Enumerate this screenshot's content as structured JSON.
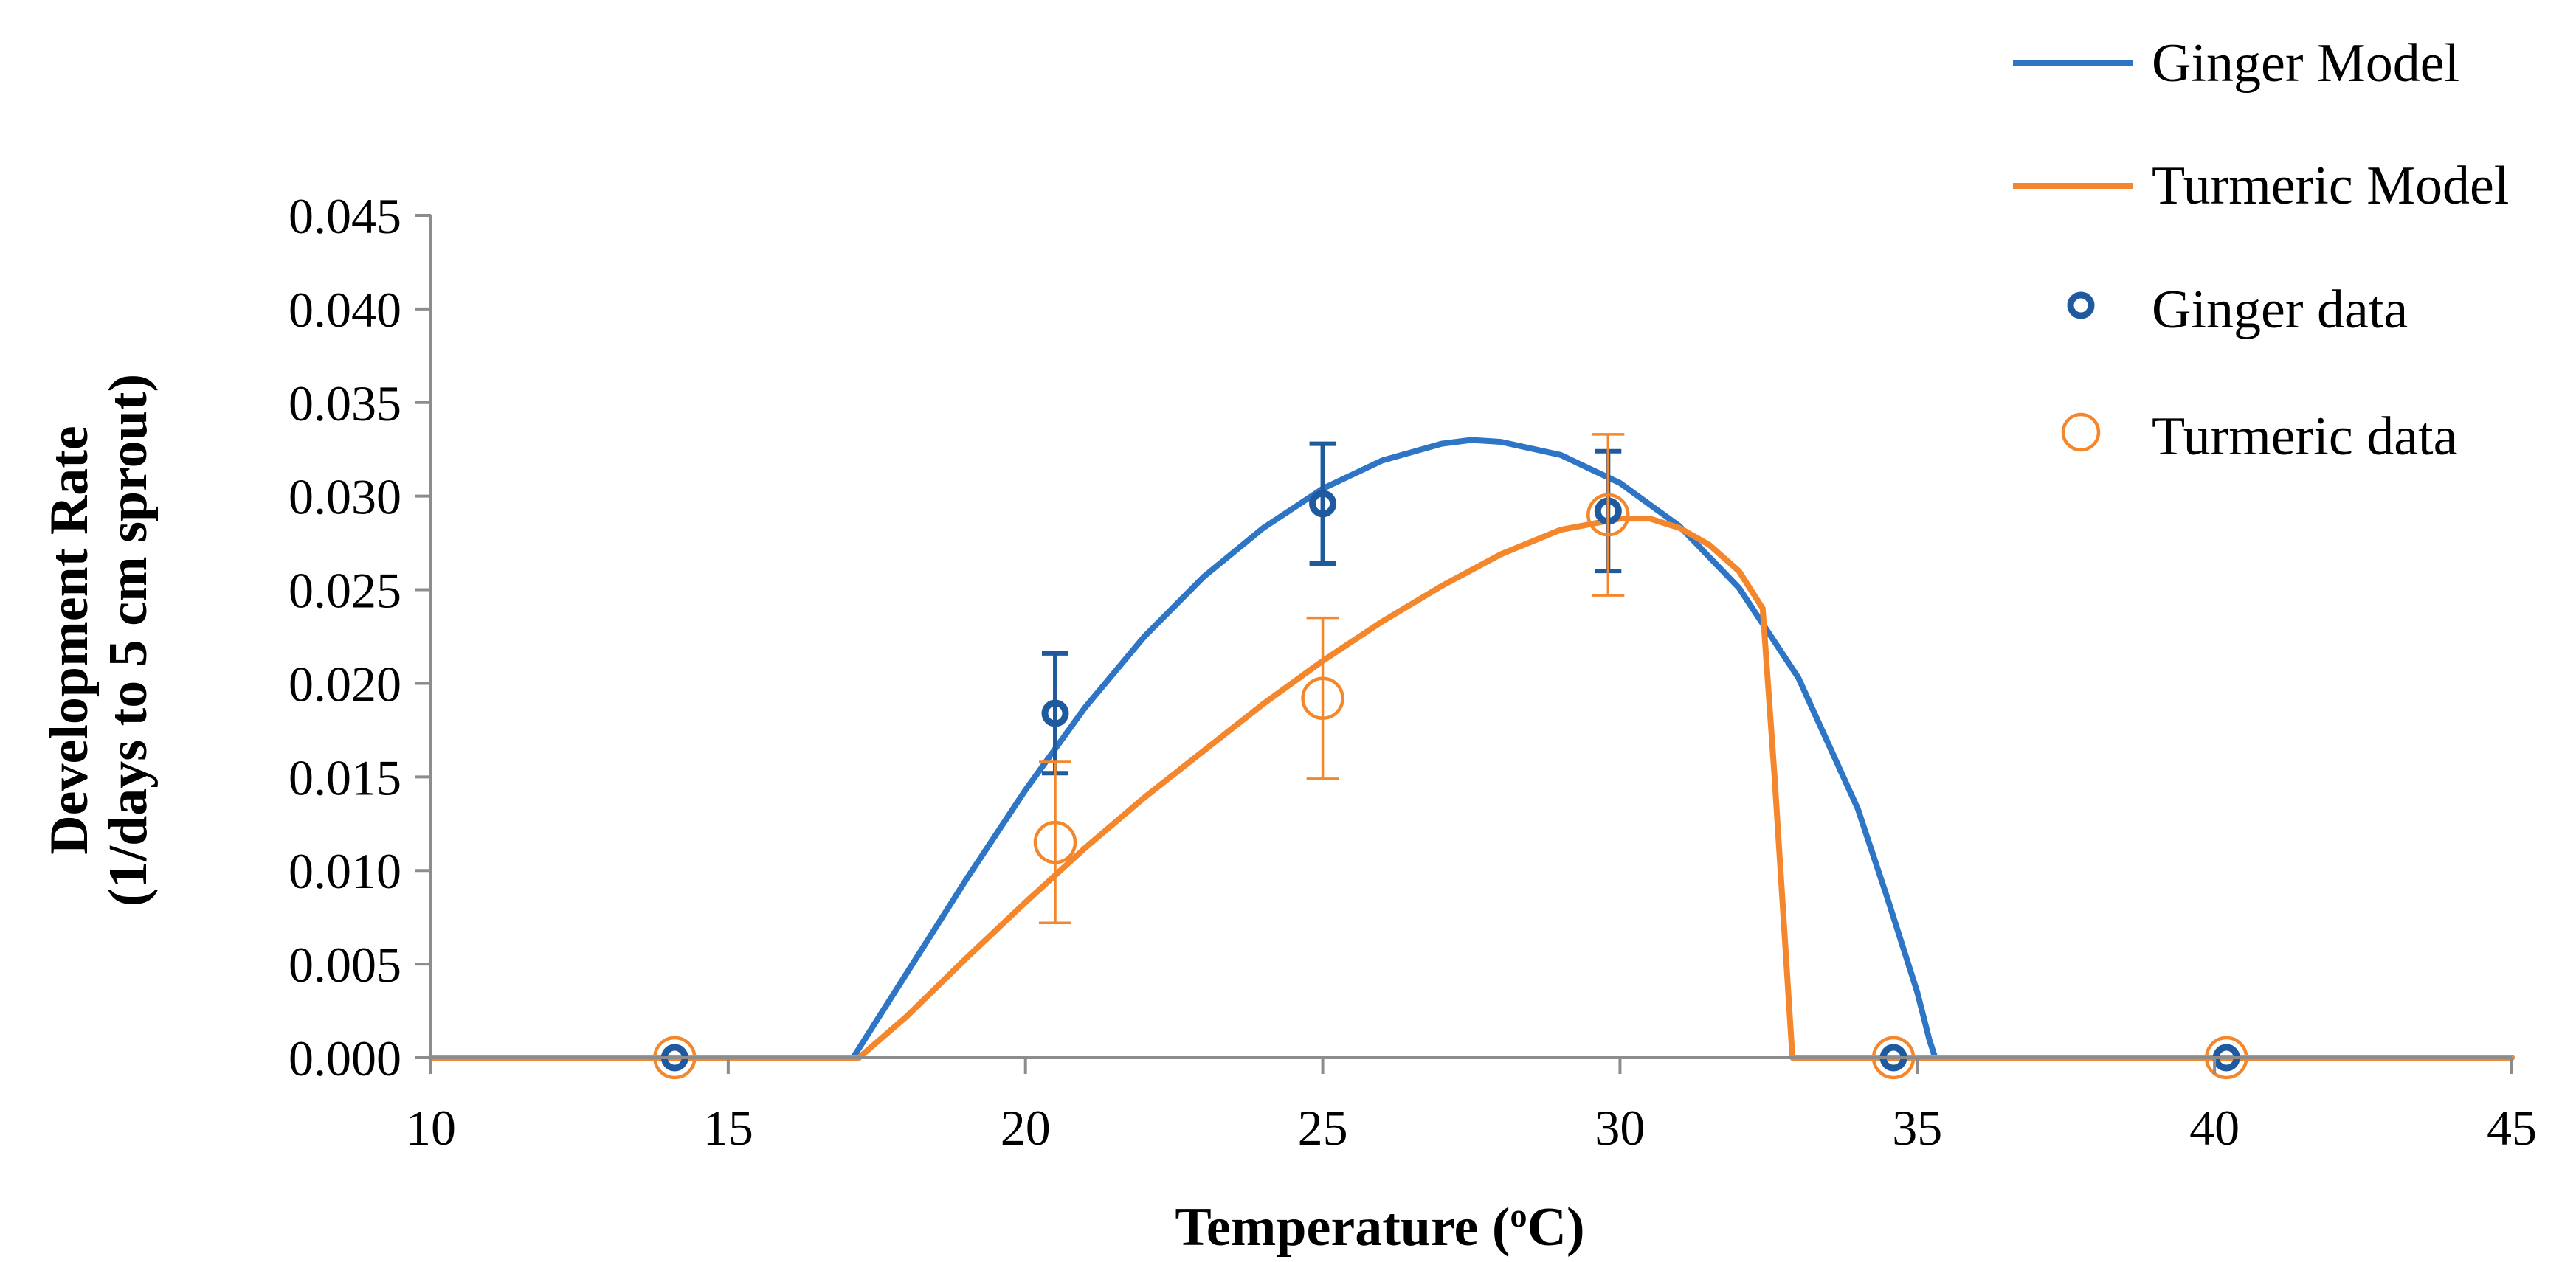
{
  "chart_data": {
    "type": "scatter",
    "xlabel": "Temperature (",
    "xlabel_sup": "o",
    "xlabel_end": "C)",
    "ylabel_line1": "Development Rate",
    "ylabel_line2": "(1/days to 5 cm sprout)",
    "xlim": [
      10,
      45
    ],
    "ylim": [
      0,
      0.045
    ],
    "x_ticks": [
      10,
      15,
      20,
      25,
      30,
      35,
      40,
      45
    ],
    "x_tick_labels": [
      "10",
      "15",
      "20",
      "25",
      "30",
      "35",
      "40",
      "45"
    ],
    "y_ticks": [
      0,
      0.005,
      0.01,
      0.015,
      0.02,
      0.025,
      0.03,
      0.035,
      0.04,
      0.045
    ],
    "y_tick_labels": [
      "0.000",
      "0.005",
      "0.010",
      "0.015",
      "0.020",
      "0.025",
      "0.030",
      "0.035",
      "0.040",
      "0.045"
    ],
    "grid": false,
    "legend_position": "top-right",
    "series": [
      {
        "name": "Ginger Model",
        "kind": "line",
        "color": "#2e75c6",
        "x": [
          10,
          17.1,
          18,
          19,
          20,
          21,
          22,
          23,
          24,
          25,
          26,
          27,
          27.5,
          28,
          29,
          30,
          31,
          32,
          33,
          34,
          34.5,
          35,
          35.2,
          35.3,
          45
        ],
        "y": [
          0,
          0,
          0.0045,
          0.0095,
          0.0143,
          0.0187,
          0.0225,
          0.0257,
          0.0283,
          0.0304,
          0.0319,
          0.0328,
          0.033,
          0.0329,
          0.0322,
          0.0307,
          0.0284,
          0.0251,
          0.0203,
          0.0133,
          0.0085,
          0.0035,
          0.001,
          0,
          0
        ]
      },
      {
        "name": "Turmeric Model",
        "kind": "line",
        "color": "#f4872b",
        "x": [
          10,
          17.2,
          18,
          19,
          20,
          21,
          22,
          23,
          24,
          25,
          26,
          27,
          28,
          29,
          30,
          30.5,
          31,
          31.5,
          32,
          32.4,
          32.6,
          32.9,
          45
        ],
        "y": [
          0,
          0,
          0.0022,
          0.0053,
          0.0083,
          0.0112,
          0.0139,
          0.0164,
          0.0189,
          0.0212,
          0.0233,
          0.0252,
          0.0269,
          0.0282,
          0.0288,
          0.0288,
          0.0283,
          0.0274,
          0.026,
          0.024,
          0.015,
          0,
          0
        ]
      },
      {
        "name": "Ginger data",
        "kind": "scatter",
        "color": "#1f5a9e",
        "x": [
          14.1,
          20.5,
          25.0,
          29.8,
          34.6,
          40.2
        ],
        "y": [
          0,
          0.0184,
          0.0296,
          0.0292,
          0,
          0
        ],
        "error": [
          0,
          0.0032,
          0.0032,
          0.0032,
          0,
          0
        ]
      },
      {
        "name": "Turmeric data",
        "kind": "scatter",
        "color": "#f4872b",
        "x": [
          14.1,
          20.5,
          25.0,
          29.8,
          34.6,
          40.2
        ],
        "y": [
          0,
          0.0115,
          0.0192,
          0.029,
          0,
          0
        ],
        "error": [
          0,
          0.0043,
          0.0043,
          0.0043,
          0,
          0
        ]
      }
    ]
  }
}
